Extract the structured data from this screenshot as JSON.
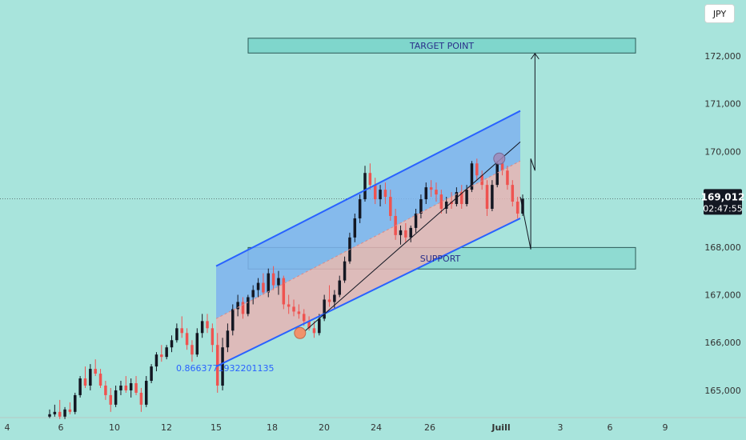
{
  "chart_data": {
    "type": "candlestick",
    "currency": "JPY",
    "ylim": [
      164.43,
      173.17
    ],
    "x_tick_labels": [
      "4",
      "6",
      "10",
      "12",
      "15",
      "18",
      "20",
      "24",
      "26",
      "Juill",
      "3",
      "6",
      "9"
    ],
    "y_tick_labels": [
      "172,000",
      "171,000",
      "170,000",
      "169,000",
      "168,000",
      "167,000",
      "166,000",
      "165,000"
    ],
    "y_tick_values": [
      172,
      171,
      170,
      169,
      168,
      167,
      166,
      165
    ],
    "last_price": {
      "label": "169,012",
      "countdown": "02:47:55",
      "value": 169.012
    },
    "annotations": {
      "target_label": "TARGET POINT",
      "target_zone": [
        172.06,
        172.37
      ],
      "support_label": "SUPPORT",
      "support_zone": [
        167.54,
        167.99
      ],
      "fib_label": "0.8663771932201135",
      "channel_upper": {
        "from": [
          15,
          167.6
        ],
        "to": [
          29.5,
          170.85
        ]
      },
      "channel_lower": {
        "from": [
          15,
          165.5
        ],
        "to": [
          29.5,
          168.6
        ]
      },
      "channel_mid": {
        "from": [
          15,
          166.5
        ],
        "to": [
          29.5,
          169.8
        ]
      },
      "trend_line": {
        "from": [
          19,
          166.15
        ],
        "to": [
          29.5,
          170.2
        ]
      },
      "swing_low_marker": [
        19,
        166.2
      ],
      "swing_high_marker": [
        28.5,
        169.85
      ],
      "projection_path": [
        [
          29.5,
          169.05
        ],
        [
          30.0,
          167.95
        ],
        [
          30.0,
          169.85
        ],
        [
          30.2,
          169.6
        ],
        [
          30.2,
          172.05
        ]
      ]
    },
    "candles": [
      {
        "o": 164.45,
        "h": 164.6,
        "l": 164.42,
        "c": 164.5
      },
      {
        "o": 164.5,
        "h": 164.7,
        "l": 164.45,
        "c": 164.55
      },
      {
        "o": 164.55,
        "h": 164.8,
        "l": 164.4,
        "c": 164.45
      },
      {
        "o": 164.45,
        "h": 164.65,
        "l": 164.4,
        "c": 164.6
      },
      {
        "o": 164.6,
        "h": 164.75,
        "l": 164.5,
        "c": 164.55
      },
      {
        "o": 164.55,
        "h": 164.95,
        "l": 164.5,
        "c": 164.9
      },
      {
        "o": 164.9,
        "h": 165.3,
        "l": 164.85,
        "c": 165.25
      },
      {
        "o": 165.25,
        "h": 165.5,
        "l": 165.05,
        "c": 165.1
      },
      {
        "o": 165.1,
        "h": 165.55,
        "l": 165.0,
        "c": 165.45
      },
      {
        "o": 165.45,
        "h": 165.65,
        "l": 165.3,
        "c": 165.35
      },
      {
        "o": 165.35,
        "h": 165.45,
        "l": 165.05,
        "c": 165.1
      },
      {
        "o": 165.1,
        "h": 165.2,
        "l": 164.8,
        "c": 164.9
      },
      {
        "o": 164.9,
        "h": 165.05,
        "l": 164.55,
        "c": 164.7
      },
      {
        "o": 164.7,
        "h": 165.1,
        "l": 164.65,
        "c": 165.0
      },
      {
        "o": 165.0,
        "h": 165.2,
        "l": 164.9,
        "c": 165.1
      },
      {
        "o": 165.1,
        "h": 165.3,
        "l": 164.95,
        "c": 165.0
      },
      {
        "o": 165.0,
        "h": 165.25,
        "l": 164.85,
        "c": 165.15
      },
      {
        "o": 165.15,
        "h": 165.3,
        "l": 164.9,
        "c": 164.95
      },
      {
        "o": 164.95,
        "h": 165.05,
        "l": 164.55,
        "c": 164.7
      },
      {
        "o": 164.7,
        "h": 165.3,
        "l": 164.65,
        "c": 165.2
      },
      {
        "o": 165.2,
        "h": 165.55,
        "l": 165.15,
        "c": 165.5
      },
      {
        "o": 165.5,
        "h": 165.8,
        "l": 165.4,
        "c": 165.75
      },
      {
        "o": 165.75,
        "h": 165.95,
        "l": 165.6,
        "c": 165.7
      },
      {
        "o": 165.7,
        "h": 165.95,
        "l": 165.65,
        "c": 165.9
      },
      {
        "o": 165.9,
        "h": 166.15,
        "l": 165.8,
        "c": 166.05
      },
      {
        "o": 166.05,
        "h": 166.4,
        "l": 166.0,
        "c": 166.3
      },
      {
        "o": 166.3,
        "h": 166.55,
        "l": 166.1,
        "c": 166.2
      },
      {
        "o": 166.2,
        "h": 166.3,
        "l": 165.85,
        "c": 165.95
      },
      {
        "o": 165.95,
        "h": 166.05,
        "l": 165.6,
        "c": 165.75
      },
      {
        "o": 165.75,
        "h": 166.3,
        "l": 165.7,
        "c": 166.2
      },
      {
        "o": 166.2,
        "h": 166.6,
        "l": 166.1,
        "c": 166.45
      },
      {
        "o": 166.45,
        "h": 166.6,
        "l": 166.2,
        "c": 166.3
      },
      {
        "o": 166.3,
        "h": 166.4,
        "l": 165.8,
        "c": 165.95
      },
      {
        "o": 165.95,
        "h": 166.2,
        "l": 164.95,
        "c": 165.1
      },
      {
        "o": 165.1,
        "h": 166.1,
        "l": 165.0,
        "c": 165.9
      },
      {
        "o": 165.9,
        "h": 166.4,
        "l": 165.8,
        "c": 166.25
      },
      {
        "o": 166.25,
        "h": 166.8,
        "l": 166.15,
        "c": 166.7
      },
      {
        "o": 166.7,
        "h": 167.0,
        "l": 166.55,
        "c": 166.85
      },
      {
        "o": 166.85,
        "h": 166.95,
        "l": 166.5,
        "c": 166.6
      },
      {
        "o": 166.6,
        "h": 167.0,
        "l": 166.55,
        "c": 166.95
      },
      {
        "o": 166.95,
        "h": 167.2,
        "l": 166.8,
        "c": 167.1
      },
      {
        "o": 167.1,
        "h": 167.35,
        "l": 166.95,
        "c": 167.25
      },
      {
        "o": 167.25,
        "h": 167.45,
        "l": 167.0,
        "c": 167.05
      },
      {
        "o": 167.05,
        "h": 167.55,
        "l": 166.95,
        "c": 167.45
      },
      {
        "o": 167.45,
        "h": 167.6,
        "l": 167.1,
        "c": 167.2
      },
      {
        "o": 167.2,
        "h": 167.5,
        "l": 167.0,
        "c": 167.35
      },
      {
        "o": 167.35,
        "h": 167.4,
        "l": 166.7,
        "c": 166.8
      },
      {
        "o": 166.8,
        "h": 167.0,
        "l": 166.6,
        "c": 166.75
      },
      {
        "o": 166.75,
        "h": 166.9,
        "l": 166.55,
        "c": 166.65
      },
      {
        "o": 166.65,
        "h": 166.8,
        "l": 166.5,
        "c": 166.6
      },
      {
        "o": 166.6,
        "h": 166.7,
        "l": 166.35,
        "c": 166.45
      },
      {
        "o": 166.45,
        "h": 166.55,
        "l": 166.25,
        "c": 166.3
      },
      {
        "o": 166.3,
        "h": 166.45,
        "l": 166.1,
        "c": 166.2
      },
      {
        "o": 166.2,
        "h": 166.6,
        "l": 166.15,
        "c": 166.5
      },
      {
        "o": 166.5,
        "h": 167.0,
        "l": 166.45,
        "c": 166.9
      },
      {
        "o": 166.9,
        "h": 167.2,
        "l": 166.75,
        "c": 166.85
      },
      {
        "o": 166.85,
        "h": 167.1,
        "l": 166.7,
        "c": 167.0
      },
      {
        "o": 167.0,
        "h": 167.4,
        "l": 166.95,
        "c": 167.3
      },
      {
        "o": 167.3,
        "h": 167.8,
        "l": 167.25,
        "c": 167.7
      },
      {
        "o": 167.7,
        "h": 168.3,
        "l": 167.65,
        "c": 168.2
      },
      {
        "o": 168.2,
        "h": 168.7,
        "l": 168.1,
        "c": 168.6
      },
      {
        "o": 168.6,
        "h": 169.1,
        "l": 168.5,
        "c": 169.0
      },
      {
        "o": 169.0,
        "h": 169.7,
        "l": 168.95,
        "c": 169.55
      },
      {
        "o": 169.55,
        "h": 169.75,
        "l": 169.2,
        "c": 169.3
      },
      {
        "o": 169.3,
        "h": 169.45,
        "l": 168.9,
        "c": 169.0
      },
      {
        "o": 169.0,
        "h": 169.3,
        "l": 168.85,
        "c": 169.2
      },
      {
        "o": 169.2,
        "h": 169.35,
        "l": 168.9,
        "c": 169.05
      },
      {
        "o": 169.05,
        "h": 169.2,
        "l": 168.55,
        "c": 168.65
      },
      {
        "o": 168.65,
        "h": 168.8,
        "l": 168.15,
        "c": 168.25
      },
      {
        "o": 168.25,
        "h": 168.45,
        "l": 168.05,
        "c": 168.35
      },
      {
        "o": 168.35,
        "h": 168.5,
        "l": 168.1,
        "c": 168.2
      },
      {
        "o": 168.2,
        "h": 168.45,
        "l": 168.1,
        "c": 168.4
      },
      {
        "o": 168.4,
        "h": 168.8,
        "l": 168.3,
        "c": 168.7
      },
      {
        "o": 168.7,
        "h": 169.1,
        "l": 168.6,
        "c": 169.0
      },
      {
        "o": 169.0,
        "h": 169.35,
        "l": 168.9,
        "c": 169.25
      },
      {
        "o": 169.25,
        "h": 169.4,
        "l": 169.05,
        "c": 169.2
      },
      {
        "o": 169.2,
        "h": 169.35,
        "l": 168.95,
        "c": 169.1
      },
      {
        "o": 169.1,
        "h": 169.2,
        "l": 168.7,
        "c": 168.8
      },
      {
        "o": 168.8,
        "h": 169.05,
        "l": 168.7,
        "c": 168.95
      },
      {
        "o": 168.95,
        "h": 169.15,
        "l": 168.8,
        "c": 168.9
      },
      {
        "o": 168.9,
        "h": 169.25,
        "l": 168.85,
        "c": 169.15
      },
      {
        "o": 169.15,
        "h": 169.3,
        "l": 168.8,
        "c": 168.9
      },
      {
        "o": 168.9,
        "h": 169.3,
        "l": 168.85,
        "c": 169.2
      },
      {
        "o": 169.2,
        "h": 169.8,
        "l": 169.15,
        "c": 169.75
      },
      {
        "o": 169.75,
        "h": 169.85,
        "l": 169.4,
        "c": 169.5
      },
      {
        "o": 169.5,
        "h": 169.6,
        "l": 169.2,
        "c": 169.3
      },
      {
        "o": 169.3,
        "h": 169.4,
        "l": 168.65,
        "c": 168.8
      },
      {
        "o": 168.8,
        "h": 169.4,
        "l": 168.75,
        "c": 169.3
      },
      {
        "o": 169.3,
        "h": 169.8,
        "l": 169.25,
        "c": 169.75
      },
      {
        "o": 169.75,
        "h": 169.9,
        "l": 169.5,
        "c": 169.6
      },
      {
        "o": 169.6,
        "h": 169.7,
        "l": 169.2,
        "c": 169.3
      },
      {
        "o": 169.3,
        "h": 169.4,
        "l": 168.85,
        "c": 168.95
      },
      {
        "o": 168.95,
        "h": 169.05,
        "l": 168.6,
        "c": 168.7
      },
      {
        "o": 168.7,
        "h": 169.1,
        "l": 168.65,
        "c": 169.01
      }
    ]
  }
}
